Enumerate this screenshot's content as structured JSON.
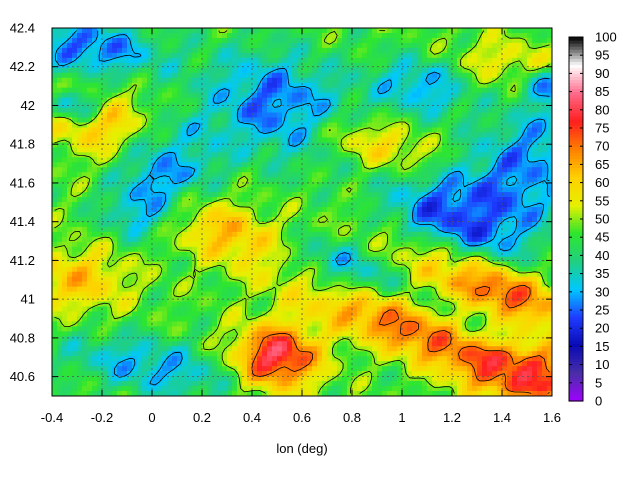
{
  "chart_data": {
    "type": "heatmap",
    "title": "",
    "xlabel": "lon (deg)",
    "ylabel": "",
    "xlim": [
      -0.4,
      1.6
    ],
    "ylim": [
      40.5,
      42.4
    ],
    "x_ticks": [
      -0.4,
      -0.2,
      0,
      0.2,
      0.4,
      0.6,
      0.8,
      1,
      1.2,
      1.4,
      1.6
    ],
    "x_tick_labels": [
      "-0.4",
      "-0.2",
      "0",
      "0.2",
      "0.4",
      "0.6",
      "0.8",
      "1",
      "1.2",
      "1.4",
      "1.6"
    ],
    "y_ticks": [
      40.6,
      40.8,
      41,
      41.2,
      41.4,
      41.6,
      41.8,
      42,
      42.2,
      42.4
    ],
    "y_tick_labels": [
      "40.6",
      "40.8",
      "41",
      "41.2",
      "41.4",
      "41.6",
      "41.8",
      "42",
      "42.2",
      "42.4"
    ],
    "grid": true,
    "contours": true,
    "colorbar": {
      "range": [
        0,
        100
      ],
      "ticks": [
        0,
        5,
        10,
        15,
        20,
        25,
        30,
        35,
        40,
        45,
        50,
        55,
        60,
        65,
        70,
        75,
        80,
        85,
        90,
        95,
        100
      ],
      "tick_labels": [
        "0",
        "5",
        "10",
        "15",
        "20",
        "25",
        "30",
        "35",
        "40",
        "45",
        "50",
        "55",
        "60",
        "65",
        "70",
        "75",
        "80",
        "85",
        "90",
        "95",
        "100"
      ],
      "colors": [
        "#a000ff",
        "#4a2fa8",
        "#0a0ab4",
        "#1e3cff",
        "#00c8ff",
        "#20d080",
        "#2ee62e",
        "#e6f000",
        "#ffd000",
        "#ff8000",
        "#ff1e1e",
        "#ff6a8a",
        "#ffffff",
        "#000000"
      ]
    },
    "features": [
      {
        "x": 0.5,
        "y": 42.0,
        "sx": 0.22,
        "sy": 0.18,
        "a": -35
      },
      {
        "x": 0.05,
        "y": 41.7,
        "sx": 0.12,
        "sy": 0.12,
        "a": -20
      },
      {
        "x": 1.2,
        "y": 41.4,
        "sx": 0.2,
        "sy": 0.18,
        "a": -25
      },
      {
        "x": 1.5,
        "y": 41.7,
        "sx": 0.15,
        "sy": 0.25,
        "a": -20
      },
      {
        "x": 0.75,
        "y": 41.15,
        "sx": 0.15,
        "sy": 0.1,
        "a": -20
      },
      {
        "x": 0.0,
        "y": 40.65,
        "sx": 0.25,
        "sy": 0.1,
        "a": -15
      },
      {
        "x": -0.25,
        "y": 42.3,
        "sx": 0.2,
        "sy": 0.1,
        "a": -10
      },
      {
        "x": 1.1,
        "y": 42.1,
        "sx": 0.15,
        "sy": 0.1,
        "a": -10
      },
      {
        "x": -0.05,
        "y": 41.45,
        "sx": 0.1,
        "sy": 0.1,
        "a": 0
      },
      {
        "x": 0.5,
        "y": 40.7,
        "sx": 0.12,
        "sy": 0.12,
        "a": -35
      },
      {
        "x": 1.0,
        "y": 40.85,
        "sx": 0.4,
        "sy": 0.09,
        "a": -30
      },
      {
        "x": 1.3,
        "y": 41.1,
        "sx": 0.3,
        "sy": 0.08,
        "a": -30
      },
      {
        "x": -0.2,
        "y": 41.9,
        "sx": 0.15,
        "sy": 0.12,
        "a": -20
      },
      {
        "x": 0.9,
        "y": 41.8,
        "sx": 0.18,
        "sy": 0.08,
        "a": -20
      },
      {
        "x": -0.3,
        "y": 41.1,
        "sx": 0.15,
        "sy": 0.12,
        "a": 0
      },
      {
        "x": 0.3,
        "y": 41.35,
        "sx": 0.15,
        "sy": 0.1,
        "a": -20
      },
      {
        "x": 1.4,
        "y": 42.2,
        "sx": 0.15,
        "sy": 0.1,
        "a": 0
      },
      {
        "x": 1.5,
        "y": 40.62,
        "sx": 0.15,
        "sy": 0.1,
        "a": -10
      },
      {
        "x": 0.15,
        "y": 41.8,
        "sx": 0.1,
        "sy": 0.1,
        "a": 0
      },
      {
        "x": 1.35,
        "y": 41.98,
        "sx": 0.1,
        "sy": 0.1,
        "a": 0
      },
      {
        "x": -0.3,
        "y": 42.0,
        "sx": 0.06,
        "sy": 0.05,
        "a": 0
      },
      {
        "x": 1.55,
        "y": 42.1,
        "sx": 0.05,
        "sy": 0.05,
        "a": 0
      }
    ],
    "feature_values": [
      25,
      25,
      22,
      28,
      30,
      30,
      25,
      28,
      30,
      82,
      72,
      80,
      62,
      62,
      62,
      62,
      58,
      75,
      40,
      45,
      18,
      20
    ],
    "background_value": 46
  }
}
